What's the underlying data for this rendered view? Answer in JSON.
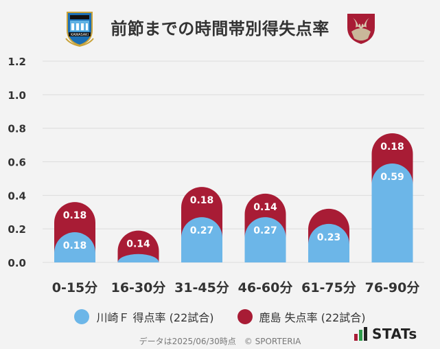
{
  "page": {
    "title": "前節までの時間帯別得失点率",
    "footer": "データは2025/06/30時点　© SPORTERIA",
    "brand": "STATs"
  },
  "logos": {
    "left_icon": "kawasaki-frontale-emblem",
    "left_text": "KAWASAKI",
    "right_icon": "kashima-antlers-emblem"
  },
  "colors": {
    "scored": "#6cb6e8",
    "conceded": "#a81c35",
    "grid": "#dcdcdc",
    "background": "#f3f3f3"
  },
  "chart_data": {
    "type": "bar",
    "stacked": true,
    "categories": [
      "0-15分",
      "16-30分",
      "31-45分",
      "46-60分",
      "61-75分",
      "76-90分"
    ],
    "series": [
      {
        "name": "川崎Ｆ 得点率 (22試合)",
        "values": [
          0.18,
          0.05,
          0.27,
          0.27,
          0.23,
          0.59
        ],
        "labels": [
          "0.18",
          "",
          "0.27",
          "0.27",
          "0.23",
          "0.59"
        ]
      },
      {
        "name": "鹿島 失点率 (22試合)",
        "values": [
          0.18,
          0.14,
          0.18,
          0.14,
          0.09,
          0.18
        ],
        "labels": [
          "0.18",
          "0.14",
          "0.18",
          "0.14",
          "",
          "0.18"
        ]
      }
    ],
    "yticks": [
      "0.0",
      "0.2",
      "0.4",
      "0.6",
      "0.8",
      "1.0",
      "1.2"
    ],
    "ylim": [
      0,
      1.2
    ],
    "grid": true,
    "legend": "bottom"
  }
}
